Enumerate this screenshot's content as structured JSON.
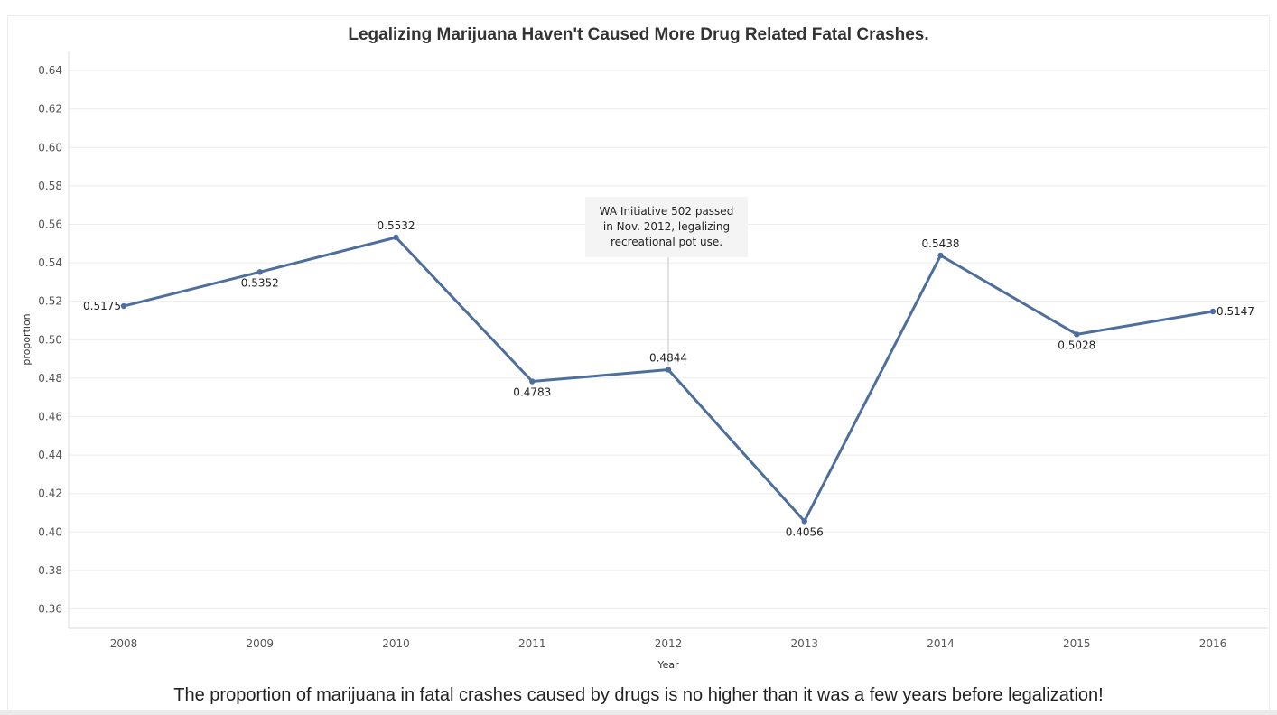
{
  "chart_data": {
    "type": "line",
    "title": "Legalizing Marijuana Haven't Caused More Drug Related Fatal Crashes.",
    "xlabel": "Year",
    "ylabel": "proportion",
    "x": [
      "2008",
      "2009",
      "2010",
      "2011",
      "2012",
      "2013",
      "2014",
      "2015",
      "2016"
    ],
    "series": [
      {
        "values": [
          0.5175,
          0.5352,
          0.5532,
          0.4783,
          0.4844,
          0.4056,
          0.5438,
          0.5028,
          0.5147
        ],
        "labels": [
          "0.5175",
          "0.5352",
          "0.5532",
          "0.4783",
          "0.4844",
          "0.4056",
          "0.5438",
          "0.5028",
          "0.5147"
        ],
        "color": "#4e6f9e"
      }
    ],
    "yticks": [
      "0.36",
      "0.38",
      "0.40",
      "0.42",
      "0.44",
      "0.46",
      "0.48",
      "0.50",
      "0.52",
      "0.54",
      "0.56",
      "0.58",
      "0.60",
      "0.62",
      "0.64"
    ],
    "ylim": [
      0.35,
      0.65
    ],
    "grid": true,
    "annotation": {
      "year": "2012",
      "lines": [
        "WA Initiative 502 passed",
        "in Nov. 2012, legalizing",
        "recreational pot use."
      ]
    }
  },
  "caption": "The proportion of marijuana in fatal crashes caused by drugs is no higher than it was a few years before legalization!"
}
